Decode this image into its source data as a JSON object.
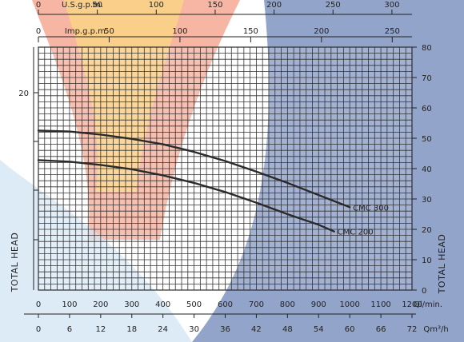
{
  "chart_data": {
    "type": "line",
    "title": "",
    "grid": true,
    "background_colors": [
      "#e83a2a",
      "#f6a13a",
      "#fbe07a",
      "#cfe3f3",
      "#3a5a9e"
    ],
    "line_color": "#2a2a2a",
    "axes": {
      "bottom_primary": {
        "label": "Ql/min.",
        "ticks": [
          "0",
          "100",
          "200",
          "300",
          "400",
          "500",
          "600",
          "700",
          "800",
          "900",
          "1000",
          "1100",
          "1200"
        ],
        "range": [
          0,
          1200
        ]
      },
      "bottom_secondary": {
        "label": "Qm³/h",
        "ticks": [
          "0",
          "6",
          "12",
          "18",
          "24",
          "30",
          "36",
          "42",
          "48",
          "54",
          "60",
          "66",
          "72"
        ],
        "range": [
          0,
          72
        ]
      },
      "top_primary": {
        "label": "U.S.g.p.m.",
        "ticks": [
          "0",
          "50",
          "100",
          "150",
          "200",
          "250",
          "300"
        ],
        "values": [
          0,
          50,
          100,
          150,
          200,
          250,
          300
        ]
      },
      "top_secondary": {
        "label": "Imp.g.p.m.",
        "ticks": [
          "0",
          "50",
          "100",
          "150",
          "200",
          "250"
        ],
        "values": [
          0,
          50,
          100,
          150,
          200,
          250
        ]
      },
      "right": {
        "label": "TOTAL HEAD",
        "ticks": [
          "0",
          "10",
          "20",
          "30",
          "40",
          "50",
          "60",
          "70",
          "80"
        ],
        "range": [
          0,
          80
        ]
      },
      "left": {
        "label": "TOTAL HEAD",
        "ticks": [
          "20"
        ],
        "tick_values": [
          65
        ]
      }
    },
    "series": [
      {
        "name": "CMC 300",
        "x": [
          0,
          100,
          200,
          300,
          400,
          500,
          600,
          700,
          800,
          900,
          1000
        ],
        "y": [
          52.5,
          52.2,
          51.2,
          49.8,
          48.0,
          45.5,
          42.5,
          39.0,
          35.3,
          31.3,
          27.3
        ]
      },
      {
        "name": "CMC 200",
        "x": [
          0,
          100,
          200,
          300,
          400,
          500,
          600,
          700,
          800,
          900,
          950
        ],
        "y": [
          42.8,
          42.3,
          41.2,
          39.8,
          37.8,
          35.3,
          32.3,
          28.8,
          25.0,
          21.5,
          19.3
        ]
      }
    ]
  }
}
